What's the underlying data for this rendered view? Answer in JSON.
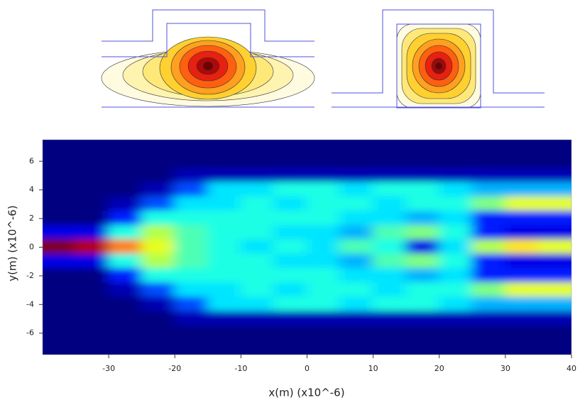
{
  "chart_data": {
    "type": "heatmap",
    "xlabel": "x(m) (x10^-6)",
    "ylabel": "y(m) (x10^-6)",
    "colormap": "jet",
    "x": [
      -37.5,
      -32.5,
      -27.5,
      -22.5,
      -17.5,
      -12.5,
      -7.5,
      -2.5,
      2.5,
      7.5,
      12.5,
      17.5,
      22.5,
      27.5,
      32.5,
      37.5
    ],
    "y": [
      7,
      6,
      5,
      4,
      3,
      2,
      1,
      0,
      -1,
      -2,
      -3,
      -4,
      -5,
      -6,
      -7
    ],
    "z": [
      [
        0,
        0,
        0,
        0,
        0,
        0,
        0,
        0,
        0,
        0,
        0,
        0,
        0,
        0,
        0,
        0
      ],
      [
        0,
        0,
        0,
        0,
        0,
        0,
        0,
        0,
        0,
        0,
        0,
        0,
        0,
        0,
        0,
        0
      ],
      [
        0,
        0,
        0,
        0,
        0.05,
        0.05,
        0.05,
        0.05,
        0.05,
        0.05,
        0.05,
        0.05,
        0.05,
        0.05,
        0.05,
        0.05
      ],
      [
        0,
        0,
        0,
        0.05,
        0.2,
        0.35,
        0.35,
        0.4,
        0.4,
        0.35,
        0.4,
        0.4,
        0.35,
        0.3,
        0.3,
        0.3
      ],
      [
        0,
        0,
        0.05,
        0.2,
        0.35,
        0.35,
        0.4,
        0.35,
        0.4,
        0.4,
        0.35,
        0.4,
        0.4,
        0.5,
        0.6,
        0.6
      ],
      [
        0,
        0,
        0.15,
        0.4,
        0.4,
        0.4,
        0.4,
        0.4,
        0.4,
        0.35,
        0.35,
        0.3,
        0.35,
        0.15,
        0.15,
        0.15
      ],
      [
        0.1,
        0.1,
        0.4,
        0.55,
        0.45,
        0.4,
        0.4,
        0.35,
        0.35,
        0.3,
        0.45,
        0.5,
        0.4,
        0.15,
        0.1,
        0.1
      ],
      [
        1,
        0.95,
        0.75,
        0.6,
        0.45,
        0.4,
        0.35,
        0.4,
        0.35,
        0.45,
        0.4,
        0.1,
        0.35,
        0.55,
        0.65,
        0.6
      ],
      [
        0.1,
        0.1,
        0.4,
        0.55,
        0.45,
        0.4,
        0.4,
        0.35,
        0.35,
        0.3,
        0.45,
        0.5,
        0.4,
        0.15,
        0.1,
        0.1
      ],
      [
        0,
        0,
        0.15,
        0.4,
        0.4,
        0.4,
        0.4,
        0.4,
        0.4,
        0.35,
        0.35,
        0.3,
        0.35,
        0.15,
        0.15,
        0.15
      ],
      [
        0,
        0,
        0.05,
        0.2,
        0.35,
        0.35,
        0.4,
        0.35,
        0.4,
        0.4,
        0.35,
        0.4,
        0.4,
        0.5,
        0.6,
        0.6
      ],
      [
        0,
        0,
        0,
        0.05,
        0.2,
        0.35,
        0.35,
        0.4,
        0.4,
        0.35,
        0.4,
        0.4,
        0.35,
        0.3,
        0.3,
        0.3
      ],
      [
        0,
        0,
        0,
        0,
        0.05,
        0.05,
        0.05,
        0.05,
        0.05,
        0.05,
        0.05,
        0.05,
        0.05,
        0.05,
        0.05,
        0.05
      ],
      [
        0,
        0,
        0,
        0,
        0,
        0,
        0,
        0,
        0,
        0,
        0,
        0,
        0,
        0,
        0,
        0
      ],
      [
        0,
        0,
        0,
        0,
        0,
        0,
        0,
        0,
        0,
        0,
        0,
        0,
        0,
        0,
        0,
        0
      ]
    ],
    "xlim": [
      -40,
      40
    ],
    "xticks": [
      -30,
      -20,
      -10,
      0,
      10,
      20,
      30,
      40
    ],
    "ylim": [
      -7.5,
      7.5
    ],
    "yticks": [
      -6,
      -4,
      -2,
      0,
      2,
      4,
      6
    ]
  }
}
